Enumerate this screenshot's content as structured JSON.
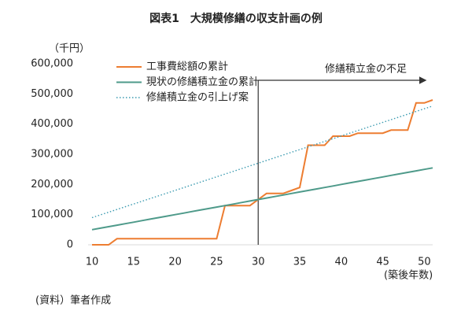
{
  "chart_data": {
    "type": "line",
    "title": "図表1　大規模修繕の収支計画の例",
    "y_label": "（千円）",
    "x_label": "(築後年数)",
    "source": "(資料）筆者作成",
    "xlim": [
      10,
      51
    ],
    "xticks": [
      10,
      15,
      20,
      25,
      30,
      35,
      40,
      45,
      50
    ],
    "ylim": [
      0,
      600000
    ],
    "yticks": [
      {
        "value": 0,
        "label": "0"
      },
      {
        "value": 100000,
        "label": "100,000"
      },
      {
        "value": 200000,
        "label": "200,000"
      },
      {
        "value": 300000,
        "label": "300,000"
      },
      {
        "value": 400000,
        "label": "400,000"
      },
      {
        "value": 500000,
        "label": "500,000"
      },
      {
        "value": 600000,
        "label": "600,000"
      }
    ],
    "grid": false,
    "series": [
      {
        "name": "工事費総額の累計",
        "color": "#ed7d31",
        "style": "solid",
        "x": [
          10,
          11,
          12,
          13,
          14,
          15,
          16,
          17,
          18,
          19,
          20,
          21,
          22,
          23,
          24,
          25,
          26,
          27,
          28,
          29,
          30,
          31,
          32,
          33,
          34,
          35,
          36,
          37,
          38,
          39,
          40,
          41,
          42,
          43,
          44,
          45,
          46,
          47,
          48,
          49,
          50,
          51
        ],
        "values": [
          0,
          0,
          0,
          20000,
          20000,
          20000,
          20000,
          20000,
          20000,
          20000,
          20000,
          20000,
          20000,
          20000,
          20000,
          20000,
          130000,
          130000,
          130000,
          130000,
          150000,
          170000,
          170000,
          170000,
          180000,
          190000,
          330000,
          330000,
          330000,
          360000,
          360000,
          360000,
          370000,
          370000,
          370000,
          370000,
          380000,
          380000,
          380000,
          470000,
          470000,
          480000
        ]
      },
      {
        "name": "現状の修繕積立金の累計",
        "color": "#4e9a8a",
        "style": "solid",
        "x": [
          10,
          11,
          12,
          13,
          14,
          15,
          16,
          17,
          18,
          19,
          20,
          21,
          22,
          23,
          24,
          25,
          26,
          27,
          28,
          29,
          30,
          31,
          32,
          33,
          34,
          35,
          36,
          37,
          38,
          39,
          40,
          41,
          42,
          43,
          44,
          45,
          46,
          47,
          48,
          49,
          50,
          51
        ],
        "values": [
          50000,
          55000,
          60000,
          65000,
          70000,
          75000,
          80000,
          85000,
          90000,
          95000,
          100000,
          105000,
          110000,
          115000,
          120000,
          125000,
          130000,
          135000,
          140000,
          145000,
          150000,
          155000,
          160000,
          165000,
          170000,
          175000,
          180000,
          185000,
          190000,
          195000,
          200000,
          205000,
          210000,
          215000,
          220000,
          225000,
          230000,
          235000,
          240000,
          245000,
          250000,
          255000
        ]
      },
      {
        "name": "修繕積立金の引上げ案",
        "color": "#3a9ab0",
        "style": "dotted",
        "x": [
          10,
          51
        ],
        "values": [
          90000,
          460000
        ]
      }
    ],
    "annotation": {
      "text": "修繕積立金の不足",
      "x": 30
    }
  }
}
